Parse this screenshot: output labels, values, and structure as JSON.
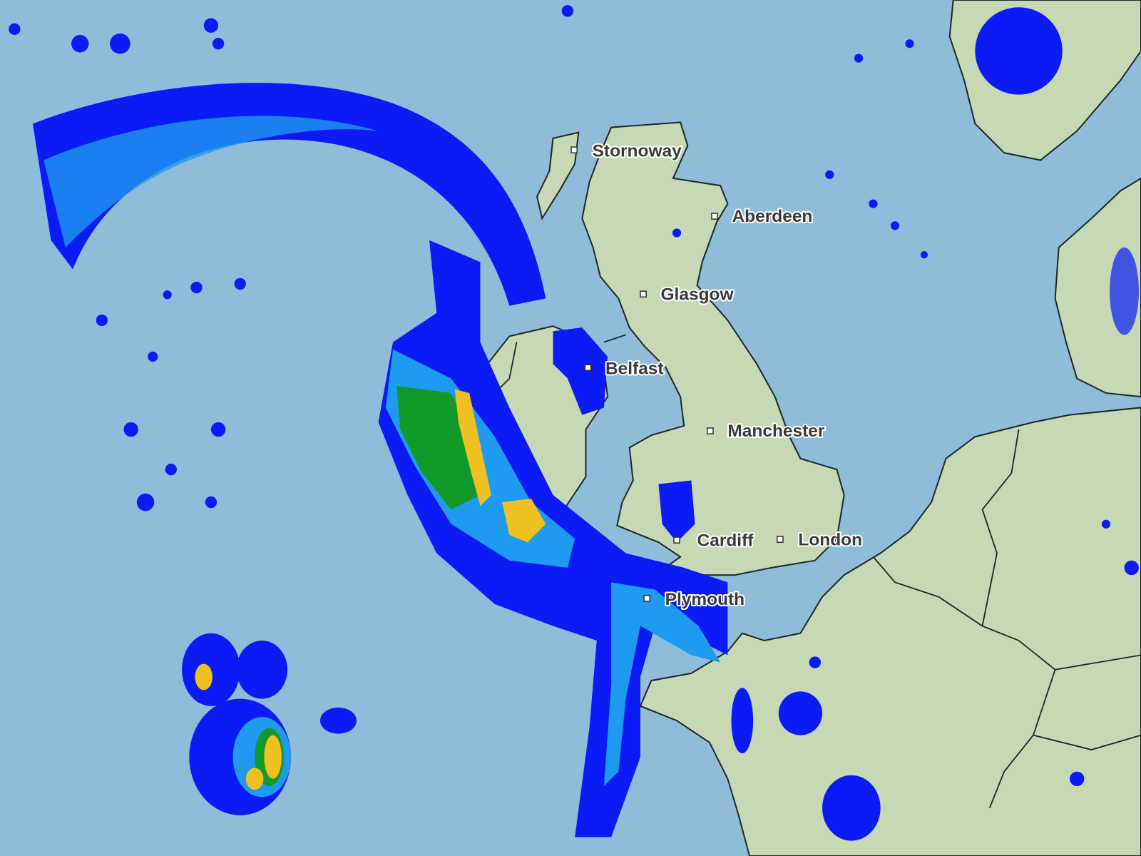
{
  "map": {
    "type": "precipitation radar",
    "colors": {
      "sea": "#8fbcd8",
      "land": "#c6d8b4",
      "rain_light": "#0a1bf5",
      "rain_moderate": "#1e9af0",
      "rain_medium": "#00a0c8",
      "rain_heavy": "#119a2a",
      "rain_very_heavy": "#f0c020",
      "rain_extreme": "#e03020"
    },
    "cities": [
      {
        "name": "Stornoway"
      },
      {
        "name": "Aberdeen"
      },
      {
        "name": "Glasgow"
      },
      {
        "name": "Belfast"
      },
      {
        "name": "Manchester"
      },
      {
        "name": "Cardiff"
      },
      {
        "name": "London"
      },
      {
        "name": "Plymouth"
      }
    ]
  }
}
